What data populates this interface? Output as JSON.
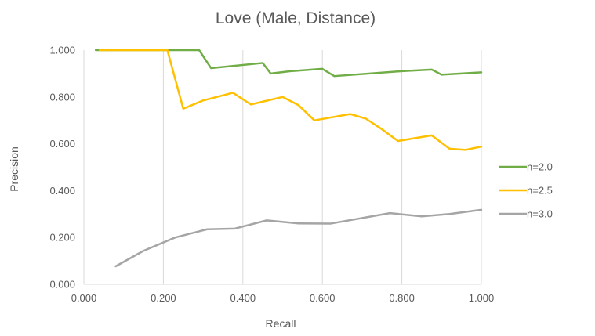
{
  "chart_data": {
    "type": "line",
    "title": "Love (Male, Distance)",
    "xlabel": "Recall",
    "ylabel": "Precision",
    "xlim": [
      0,
      1
    ],
    "ylim": [
      0,
      1
    ],
    "x_ticks": [
      "0.000",
      "0.200",
      "0.400",
      "0.600",
      "0.800",
      "1.000"
    ],
    "y_ticks": [
      "0.000",
      "0.200",
      "0.400",
      "0.600",
      "0.800",
      "1.000"
    ],
    "grid": "vertical",
    "legend_position": "right",
    "series": [
      {
        "name": "n=2.0",
        "color": "#70ad47",
        "points": [
          [
            0.03,
            1.0
          ],
          [
            0.29,
            1.0
          ],
          [
            0.32,
            0.923
          ],
          [
            0.45,
            0.945
          ],
          [
            0.47,
            0.9
          ],
          [
            0.52,
            0.91
          ],
          [
            0.6,
            0.92
          ],
          [
            0.63,
            0.889
          ],
          [
            0.8,
            0.91
          ],
          [
            0.875,
            0.917
          ],
          [
            0.9,
            0.895
          ],
          [
            1.0,
            0.905
          ]
        ]
      },
      {
        "name": "n=2.5",
        "color": "#ffc000",
        "points": [
          [
            0.04,
            1.0
          ],
          [
            0.21,
            1.0
          ],
          [
            0.25,
            0.75
          ],
          [
            0.3,
            0.785
          ],
          [
            0.375,
            0.818
          ],
          [
            0.42,
            0.768
          ],
          [
            0.5,
            0.8
          ],
          [
            0.54,
            0.765
          ],
          [
            0.58,
            0.7
          ],
          [
            0.67,
            0.727
          ],
          [
            0.71,
            0.707
          ],
          [
            0.75,
            0.662
          ],
          [
            0.79,
            0.612
          ],
          [
            0.875,
            0.636
          ],
          [
            0.92,
            0.579
          ],
          [
            0.96,
            0.574
          ],
          [
            1.0,
            0.588
          ]
        ]
      },
      {
        "name": "n=3.0",
        "color": "#a5a5a5",
        "points": [
          [
            0.08,
            0.077
          ],
          [
            0.15,
            0.143
          ],
          [
            0.23,
            0.2
          ],
          [
            0.31,
            0.235
          ],
          [
            0.38,
            0.238
          ],
          [
            0.46,
            0.273
          ],
          [
            0.54,
            0.26
          ],
          [
            0.62,
            0.259
          ],
          [
            0.77,
            0.304
          ],
          [
            0.85,
            0.29
          ],
          [
            0.92,
            0.3
          ],
          [
            1.0,
            0.318
          ]
        ]
      }
    ]
  }
}
